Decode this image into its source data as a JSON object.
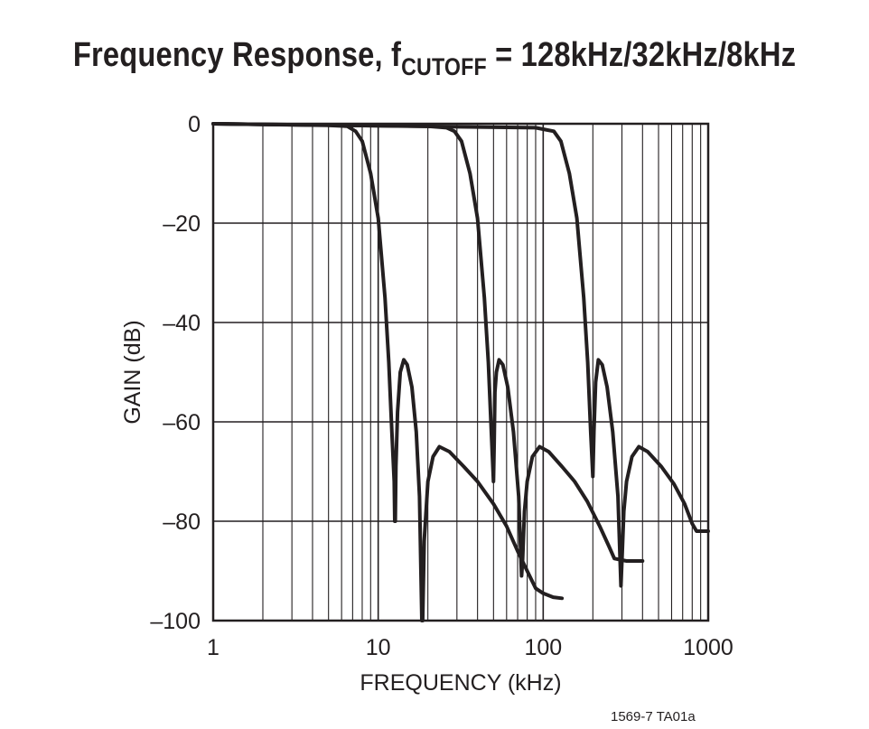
{
  "title": {
    "main": "Frequency Response, f",
    "subscript": "CUTOFF",
    "suffix": " = 128kHz/32kHz/8kHz"
  },
  "figure_number": "1569-7 TA01a",
  "chart_data": {
    "type": "line",
    "x_scale": "log",
    "xlabel": "FREQUENCY (kHz)",
    "ylabel": "GAIN (dB)",
    "xlim": [
      1,
      1000
    ],
    "ylim": [
      -100,
      0
    ],
    "x_ticks": [
      1,
      10,
      100,
      1000
    ],
    "x_tick_labels": [
      "1",
      "10",
      "100",
      "1000"
    ],
    "y_ticks": [
      0,
      -20,
      -40,
      -60,
      -80,
      -100
    ],
    "y_tick_labels": [
      "0",
      "–20",
      "–40",
      "–60",
      "–80",
      "–100"
    ],
    "grid": true,
    "line_color": "#231f20",
    "series": [
      {
        "points": [
          [
            1,
            0
          ],
          [
            5,
            -0.3
          ],
          [
            6.5,
            -0.5
          ],
          [
            7.3,
            -1.5
          ],
          [
            8,
            -3.5
          ],
          [
            9,
            -10
          ],
          [
            10,
            -19
          ],
          [
            11,
            -35
          ],
          [
            11.6,
            -48
          ],
          [
            12.1,
            -62
          ],
          [
            12.5,
            -72
          ],
          [
            12.6,
            -80
          ],
          [
            12.7,
            -80
          ],
          [
            12.8,
            -69
          ],
          [
            13.1,
            -58
          ],
          [
            13.6,
            -50
          ],
          [
            14.3,
            -47.5
          ],
          [
            15,
            -48.5
          ],
          [
            16,
            -53
          ],
          [
            17,
            -62
          ],
          [
            17.8,
            -75
          ],
          [
            18.4,
            -100
          ],
          [
            18.6,
            -100
          ],
          [
            19,
            -84
          ],
          [
            20,
            -72
          ],
          [
            21.5,
            -67
          ],
          [
            23.5,
            -65
          ],
          [
            27,
            -66
          ],
          [
            33,
            -69
          ],
          [
            40,
            -72
          ],
          [
            50,
            -76.5
          ],
          [
            60,
            -81
          ],
          [
            70,
            -86
          ],
          [
            80,
            -90
          ],
          [
            90,
            -93.5
          ],
          [
            100,
            -94.5
          ],
          [
            115,
            -95.3
          ],
          [
            130,
            -95.5
          ]
        ]
      },
      {
        "points": [
          [
            1,
            0
          ],
          [
            20,
            -0.5
          ],
          [
            26,
            -0.8
          ],
          [
            29,
            -1.5
          ],
          [
            32,
            -3.5
          ],
          [
            36,
            -10
          ],
          [
            40,
            -19
          ],
          [
            44,
            -35
          ],
          [
            46.5,
            -48
          ],
          [
            48.5,
            -62
          ],
          [
            50,
            -72
          ],
          [
            50.5,
            -64
          ],
          [
            51,
            -54
          ],
          [
            52,
            -50
          ],
          [
            54,
            -47.5
          ],
          [
            57,
            -48.5
          ],
          [
            61,
            -53
          ],
          [
            66,
            -62
          ],
          [
            71,
            -75
          ],
          [
            74,
            -91
          ],
          [
            75,
            -88
          ],
          [
            77,
            -78
          ],
          [
            80,
            -72
          ],
          [
            86,
            -67
          ],
          [
            95,
            -65
          ],
          [
            108,
            -66
          ],
          [
            130,
            -69
          ],
          [
            155,
            -72
          ],
          [
            185,
            -76
          ],
          [
            220,
            -81
          ],
          [
            250,
            -85
          ],
          [
            270,
            -87.5
          ],
          [
            320,
            -88
          ],
          [
            400,
            -88
          ]
        ]
      },
      {
        "points": [
          [
            1,
            0
          ],
          [
            90,
            -0.8
          ],
          [
            104,
            -1.2
          ],
          [
            116,
            -1.5
          ],
          [
            128,
            -3.5
          ],
          [
            144,
            -10
          ],
          [
            160,
            -19
          ],
          [
            176,
            -35
          ],
          [
            186,
            -48
          ],
          [
            194,
            -62
          ],
          [
            200,
            -71
          ],
          [
            203,
            -62
          ],
          [
            208,
            -52
          ],
          [
            216,
            -47.5
          ],
          [
            228,
            -48.5
          ],
          [
            244,
            -53
          ],
          [
            264,
            -62
          ],
          [
            284,
            -75
          ],
          [
            296,
            -93
          ],
          [
            300,
            -88
          ],
          [
            308,
            -78
          ],
          [
            320,
            -72
          ],
          [
            345,
            -67
          ],
          [
            380,
            -65
          ],
          [
            430,
            -66
          ],
          [
            520,
            -69
          ],
          [
            620,
            -72.5
          ],
          [
            720,
            -76.5
          ],
          [
            800,
            -80.5
          ],
          [
            850,
            -82
          ],
          [
            920,
            -82
          ],
          [
            1000,
            -82
          ]
        ]
      }
    ]
  }
}
